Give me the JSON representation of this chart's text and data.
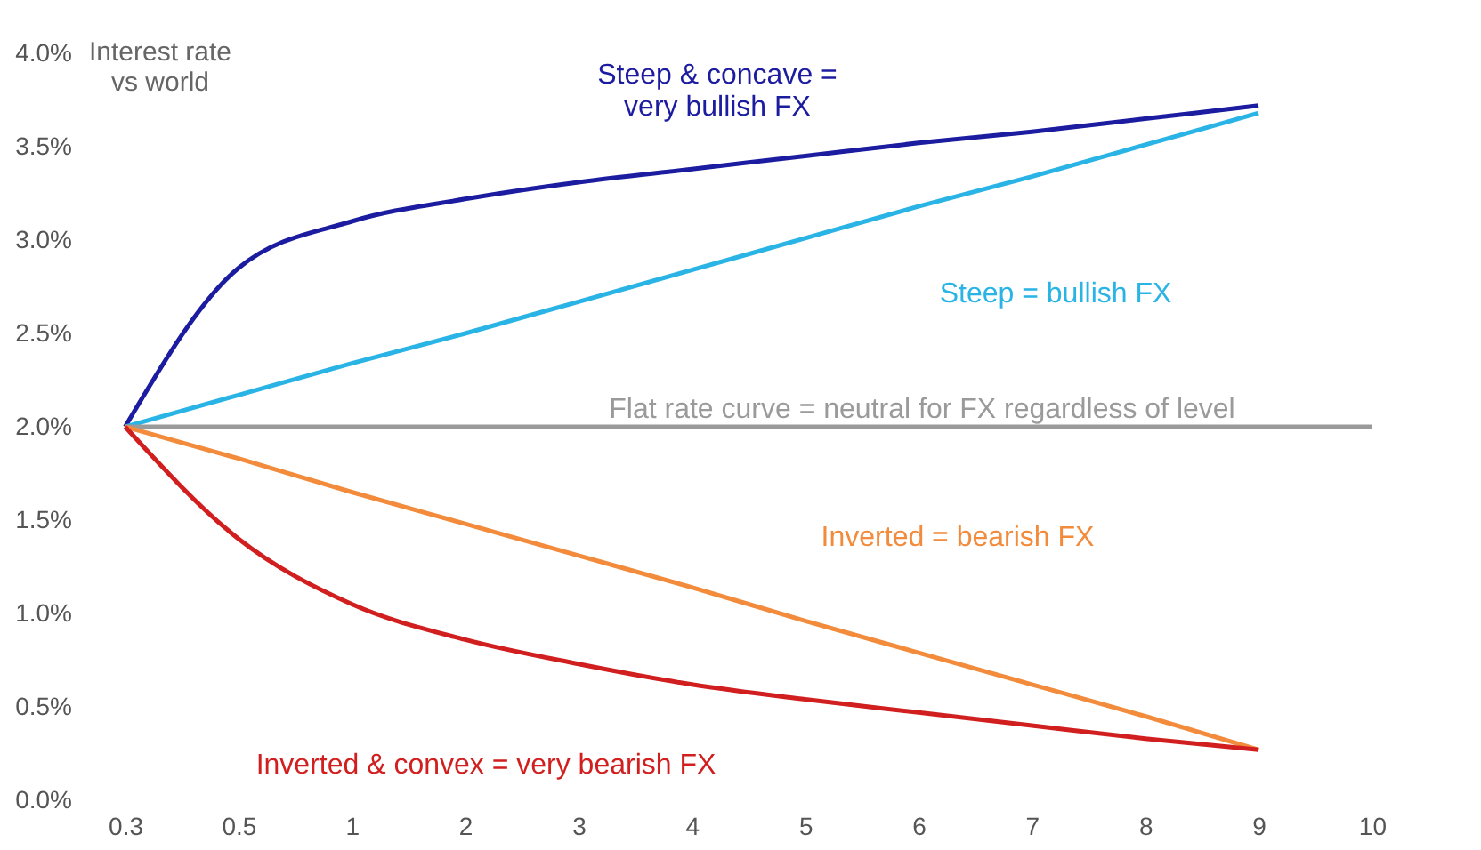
{
  "chart_data": {
    "type": "line",
    "ylabel": "Interest rate\nvs world",
    "categories": [
      "0.3",
      "0.5",
      "1",
      "2",
      "3",
      "4",
      "5",
      "6",
      "7",
      "8",
      "9",
      "10"
    ],
    "ylim": [
      0,
      4
    ],
    "yticks": [
      {
        "value": 0,
        "label": "0.0%"
      },
      {
        "value": 0.5,
        "label": "0.5%"
      },
      {
        "value": 1,
        "label": "1.0%"
      },
      {
        "value": 1.5,
        "label": "1.5%"
      },
      {
        "value": 2,
        "label": "2.0%"
      },
      {
        "value": 2.5,
        "label": "2.5%"
      },
      {
        "value": 3,
        "label": "3.0%"
      },
      {
        "value": 3.5,
        "label": "3.5%"
      },
      {
        "value": 4,
        "label": "4.0%"
      }
    ],
    "grid": false,
    "marker": "none",
    "line_style": "solid",
    "series": [
      {
        "color": "#1c1ca0",
        "values": [
          2.0,
          2.85,
          3.1,
          3.22,
          3.31,
          3.38,
          3.45,
          3.52,
          3.58,
          3.65,
          3.72,
          null
        ]
      },
      {
        "color": "#2ab4e6",
        "values": [
          2.0,
          2.17,
          2.34,
          2.5,
          2.67,
          2.84,
          3.01,
          3.18,
          3.34,
          3.51,
          3.68,
          null
        ]
      },
      {
        "color": "#9a9a9a",
        "values": [
          2.0,
          2.0,
          2.0,
          2.0,
          2.0,
          2.0,
          2.0,
          2.0,
          2.0,
          2.0,
          2.0,
          2.0
        ]
      },
      {
        "color": "#f28c3c",
        "values": [
          2.0,
          1.83,
          1.65,
          1.48,
          1.31,
          1.14,
          0.96,
          0.79,
          0.62,
          0.45,
          0.27,
          null
        ]
      },
      {
        "color": "#d11f1f",
        "values": [
          2.0,
          1.4,
          1.05,
          0.86,
          0.73,
          0.62,
          0.54,
          0.47,
          0.4,
          0.33,
          0.27,
          null
        ]
      }
    ],
    "annotations": [
      "Steep & concave =\nvery bullish FX",
      "Steep = bullish FX",
      "Flat rate curve = neutral for FX regardless of level",
      "Inverted = bearish FX",
      "Inverted & convex = very bearish FX"
    ]
  }
}
